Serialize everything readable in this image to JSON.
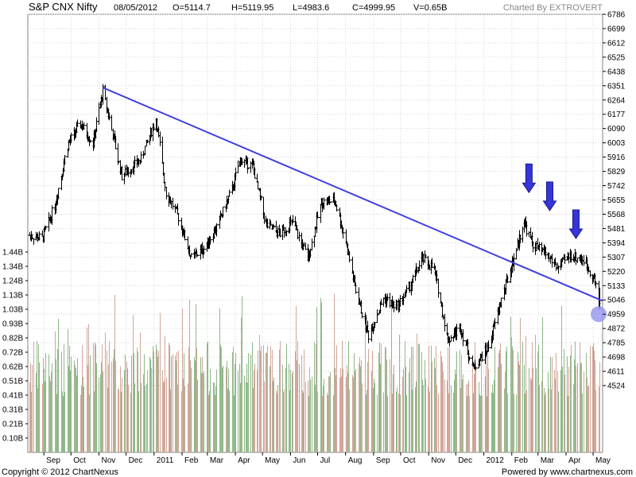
{
  "header": {
    "title": "S&P CNX Nifty",
    "date": "08/05/2012",
    "open": "O=5114.7",
    "high": "H=5119.95",
    "low": "L=4983.6",
    "close": "C=4999.95",
    "volume": "V=0.65B",
    "credit": "Charted By EXTROVERT"
  },
  "footer": {
    "copyright": "Copyright © 2012 ChartNexus",
    "powered": "Powered by www.chartnexus.com"
  },
  "colors": {
    "price_bar": "#000000",
    "trendline": "#4040e0",
    "arrow": "#3535d8",
    "marker": "#9a9af0",
    "vol_up": "#8fb889",
    "vol_down": "#d1a79b",
    "grid": "#d6d6d6"
  },
  "chart_data": {
    "type": "ohlc",
    "price_axis": {
      "min": 4524,
      "max": 6786,
      "ticks": [
        "6786",
        "6699",
        "6612",
        "6525",
        "6438",
        "6351",
        "6264",
        "6177",
        "6090",
        "6003",
        "5916",
        "5829",
        "5742",
        "5655",
        "5568",
        "5481",
        "5394",
        "5307",
        "5220",
        "5133",
        "5046",
        "4959",
        "4872",
        "4785",
        "4698",
        "4611",
        "4524"
      ]
    },
    "volume_axis": {
      "unit": "B",
      "ticks": [
        "1.44B",
        "1.34B",
        "1.24B",
        "1.13B",
        "1.03B",
        "0.93B",
        "0.82B",
        "0.72B",
        "0.62B",
        "0.51B",
        "0.41B",
        "0.31B",
        "0.21B",
        "0.10B"
      ]
    },
    "x_axis": {
      "start": "2010-08-16",
      "end": "2012-05-08",
      "labels": [
        {
          "label": "Sep",
          "date": "2010-09-01"
        },
        {
          "label": "Oct",
          "date": "2010-10-01"
        },
        {
          "label": "Nov",
          "date": "2010-11-01"
        },
        {
          "label": "Dec",
          "date": "2010-12-01"
        },
        {
          "label": "2011",
          "date": "2011-01-01"
        },
        {
          "label": "Feb",
          "date": "2011-02-01"
        },
        {
          "label": "Mar",
          "date": "2011-03-01"
        },
        {
          "label": "Apr",
          "date": "2011-04-01"
        },
        {
          "label": "May",
          "date": "2011-05-01"
        },
        {
          "label": "Jun",
          "date": "2011-06-01"
        },
        {
          "label": "Jul",
          "date": "2011-07-01"
        },
        {
          "label": "Aug",
          "date": "2011-08-01"
        },
        {
          "label": "Sep",
          "date": "2011-09-01"
        },
        {
          "label": "Oct",
          "date": "2011-10-01"
        },
        {
          "label": "Nov",
          "date": "2011-11-01"
        },
        {
          "label": "Dec",
          "date": "2011-12-01"
        },
        {
          "label": "2012",
          "date": "2012-01-01"
        },
        {
          "label": "Feb",
          "date": "2012-02-01"
        },
        {
          "label": "Mar",
          "date": "2012-03-01"
        },
        {
          "label": "Apr",
          "date": "2012-04-01"
        },
        {
          "label": "May",
          "date": "2012-05-01"
        }
      ]
    },
    "price_path": [
      [
        "2010-08-16",
        5440
      ],
      [
        "2010-08-30",
        5420
      ],
      [
        "2010-09-13",
        5620
      ],
      [
        "2010-09-27",
        5990
      ],
      [
        "2010-10-11",
        6120
      ],
      [
        "2010-10-25",
        6000
      ],
      [
        "2010-11-05",
        6320
      ],
      [
        "2010-11-15",
        6080
      ],
      [
        "2010-11-26",
        5800
      ],
      [
        "2010-12-06",
        5850
      ],
      [
        "2010-12-17",
        5900
      ],
      [
        "2011-01-03",
        6150
      ],
      [
        "2011-01-14",
        5700
      ],
      [
        "2011-01-28",
        5550
      ],
      [
        "2011-02-11",
        5300
      ],
      [
        "2011-02-25",
        5360
      ],
      [
        "2011-03-11",
        5490
      ],
      [
        "2011-03-28",
        5720
      ],
      [
        "2011-04-06",
        5900
      ],
      [
        "2011-04-20",
        5860
      ],
      [
        "2011-05-05",
        5500
      ],
      [
        "2011-05-20",
        5450
      ],
      [
        "2011-06-03",
        5520
      ],
      [
        "2011-06-20",
        5300
      ],
      [
        "2011-07-05",
        5640
      ],
      [
        "2011-07-20",
        5650
      ],
      [
        "2011-08-01",
        5400
      ],
      [
        "2011-08-12",
        5100
      ],
      [
        "2011-08-26",
        4830
      ],
      [
        "2011-09-12",
        5060
      ],
      [
        "2011-09-26",
        5000
      ],
      [
        "2011-10-10",
        5120
      ],
      [
        "2011-10-25",
        5300
      ],
      [
        "2011-11-07",
        5230
      ],
      [
        "2011-11-22",
        4800
      ],
      [
        "2011-12-06",
        4880
      ],
      [
        "2011-12-20",
        4630
      ],
      [
        "2012-01-06",
        4760
      ],
      [
        "2012-01-20",
        5050
      ],
      [
        "2012-02-03",
        5300
      ],
      [
        "2012-02-14",
        5520
      ],
      [
        "2012-02-24",
        5380
      ],
      [
        "2012-03-09",
        5330
      ],
      [
        "2012-03-23",
        5240
      ],
      [
        "2012-04-05",
        5320
      ],
      [
        "2012-04-20",
        5290
      ],
      [
        "2012-05-02",
        5180
      ],
      [
        "2012-05-08",
        5000
      ]
    ],
    "last_bar": {
      "date": "2012-05-08",
      "open": 5114.7,
      "high": 5119.95,
      "low": 4983.6,
      "close": 4999.95
    },
    "trendline": [
      [
        "2010-11-05",
        6340
      ],
      [
        "2012-05-08",
        5040
      ]
    ],
    "arrows": [
      {
        "date": "2012-02-20",
        "price": 5700
      },
      {
        "date": "2012-03-14",
        "price": 5590
      },
      {
        "date": "2012-04-12",
        "price": 5420
      }
    ],
    "marker": {
      "date": "2012-05-08",
      "price": 4959
    }
  }
}
